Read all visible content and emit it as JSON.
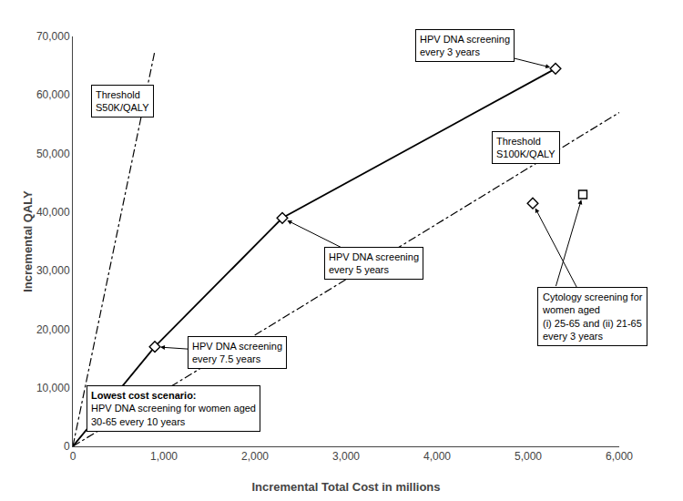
{
  "chart_data": {
    "type": "line",
    "xlabel": "Incremental Total Cost in millions",
    "ylabel": "Incremental QALY",
    "xlim": [
      0,
      6000
    ],
    "ylim": [
      0,
      70000
    ],
    "xticks": [
      0,
      {
        "value": 1000,
        "label": "1,000"
      },
      {
        "value": 2000,
        "label": "2,000"
      },
      {
        "value": 3000,
        "label": "3,000"
      },
      {
        "value": 4000,
        "label": "4,000"
      },
      {
        "value": 5000,
        "label": "5,000"
      },
      {
        "value": 6000,
        "label": "6,000"
      }
    ],
    "yticks": [
      0,
      {
        "value": 10000,
        "label": "10,000"
      },
      {
        "value": 20000,
        "label": "20,000"
      },
      {
        "value": 30000,
        "label": "30,000"
      },
      {
        "value": 40000,
        "label": "40,000"
      },
      {
        "value": 50000,
        "label": "50,000"
      },
      {
        "value": 60000,
        "label": "60,000"
      },
      {
        "value": 70000,
        "label": "70,000"
      }
    ],
    "grid": false,
    "series": [
      {
        "type": "line",
        "x": [
          0,
          900,
          2300,
          5300
        ],
        "values": [
          0,
          17000,
          39000,
          64500
        ],
        "color": "#000000",
        "line_style": "solid"
      },
      {
        "type": "scatter",
        "x": [
          900,
          2300,
          5300
        ],
        "values": [
          17000,
          39000,
          64500
        ],
        "color": "#000000",
        "marker": "diamond"
      },
      {
        "type": "scatter",
        "x": [
          5050
        ],
        "values": [
          41500
        ],
        "color": "#000000",
        "marker": "diamond"
      },
      {
        "type": "scatter",
        "x": [
          5600
        ],
        "values": [
          43000
        ],
        "color": "#000000",
        "marker": "square"
      },
      {
        "type": "line",
        "x": [
          0,
          900
        ],
        "values": [
          0,
          67500
        ],
        "color": "#000000",
        "line_style": "dashdot"
      },
      {
        "type": "line",
        "x": [
          0,
          6000
        ],
        "values": [
          0,
          57000
        ],
        "color": "#000000",
        "line_style": "dashdot"
      }
    ],
    "annotations": [
      {
        "text": "HPV DNA screening\nevery 3 years",
        "x": 5300,
        "y": 64500
      },
      {
        "text": "HPV DNA screening\nevery 5 years",
        "x": 2300,
        "y": 39000
      },
      {
        "text": "HPV DNA screening\nevery 7.5 years",
        "x": 900,
        "y": 17000
      },
      {
        "heading": "Lowest cost scenario:",
        "text": "HPV DNA screening for women aged\n30-65 every 10 years"
      },
      {
        "text": "Cytology screening for\nwomen aged\n(i) 25-65 and (ii) 21-65\nevery 3 years",
        "points": [
          [
            5050,
            41500
          ],
          [
            5600,
            43000
          ]
        ]
      },
      {
        "text": "Threshold\nS50K/QALY"
      },
      {
        "text": "Threshold\nS100K/QALY"
      }
    ]
  }
}
